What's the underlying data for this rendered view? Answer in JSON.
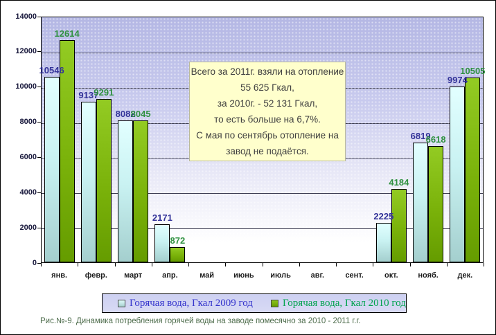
{
  "chart_data": {
    "type": "bar",
    "title": "",
    "xlabel": "",
    "ylabel": "",
    "categories": [
      "янв.",
      "февр.",
      "март",
      "апр.",
      "май",
      "июнь",
      "июль",
      "авг.",
      "сент.",
      "окт.",
      "нояб.",
      "дек."
    ],
    "series": [
      {
        "name": "Горячая вода, Гкал 2009 год",
        "values": [
          10546,
          9137,
          8082,
          2171,
          0,
          0,
          0,
          0,
          0,
          2225,
          6819,
          9974
        ],
        "label_color": "#333399",
        "legend_text_color": "#3333cc"
      },
      {
        "name": "Горячая вода, Гкал 2010 год",
        "values": [
          12614,
          9291,
          8045,
          872,
          0,
          0,
          0,
          0,
          0,
          4184,
          6618,
          10505
        ],
        "label_color": "#2f9140",
        "legend_text_color": "#00a34d"
      }
    ],
    "ylim": [
      0,
      14000
    ],
    "ytick_step": 2000,
    "grid": true,
    "legend_position": "bottom"
  },
  "annotation": {
    "lines": [
      "Всего за 2011г. взяли на отопление",
      "55 625 Гкал,",
      "за 2010г. - 52 131 Гкал,",
      "то есть больше на 6,7%.",
      "С мая по сентябрь отопление на",
      "завод не подаётся."
    ]
  },
  "caption": "Рис.№-9. Динамика потребления горячей воды на заводе помесячно за 2010 - 2011 г.г."
}
